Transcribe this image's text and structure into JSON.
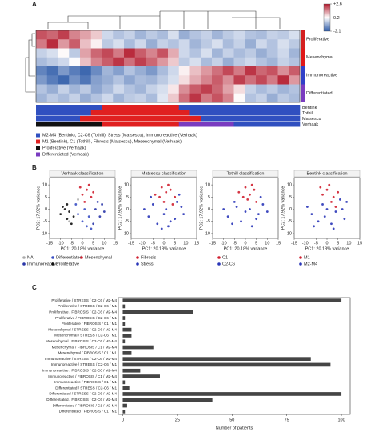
{
  "chart_data": [
    {
      "type": "heatmap",
      "label": "A",
      "zlim": [
        -2.1,
        2.6
      ],
      "zticks": [
        {
          "value": 2.6,
          "label": "+2.6"
        },
        0.2,
        -2.1
      ],
      "colors": [
        "#2c5aa8",
        "#ffffff",
        "#b2182b"
      ],
      "groups": [
        {
          "name": "Proliferative",
          "color": "#d42020",
          "values": [
            [
              2.0,
              1.8,
              2.2,
              1.5,
              1.2,
              0.8,
              -0.3,
              -0.6,
              -0.4,
              -0.8,
              -0.5,
              -0.7,
              -0.2,
              -0.9,
              -0.6,
              -0.4,
              -0.8,
              -0.5,
              -0.3,
              -0.6,
              -0.7,
              -0.4,
              -0.5,
              -0.2
            ],
            [
              1.6,
              2.4,
              1.3,
              1.9,
              0.9,
              0.4,
              -0.5,
              -0.2,
              -0.7,
              -0.3,
              -0.9,
              -0.4,
              -0.6,
              -0.3,
              -0.8,
              -0.5,
              -0.2,
              -0.7,
              -0.4,
              -0.9,
              -0.3,
              -0.6,
              -0.2,
              -0.5
            ]
          ]
        },
        {
          "name": "Mesenchymal",
          "color": "#e01818",
          "values": [
            [
              -0.4,
              -0.2,
              0.3,
              -0.5,
              1.2,
              1.8,
              2.1,
              1.6,
              2.4,
              1.9,
              1.5,
              2.0,
              1.1,
              -0.3,
              -0.6,
              -0.2,
              -0.8,
              -0.4,
              -0.7,
              -0.5,
              -0.9,
              -0.6,
              -0.3,
              -0.8
            ],
            [
              -0.7,
              -0.5,
              -0.3,
              0.2,
              0.9,
              1.5,
              1.9,
              2.3,
              1.7,
              2.2,
              1.8,
              1.3,
              0.8,
              -0.5,
              -0.2,
              -0.7,
              -0.4,
              -0.9,
              -0.5,
              -0.3,
              -0.6,
              -0.8,
              -0.4,
              -0.6
            ]
          ]
        },
        {
          "name": "Immunoreactive",
          "color": "#3040c8",
          "values": [
            [
              -1.5,
              -1.8,
              -1.2,
              -1.6,
              -1.9,
              -1.4,
              -0.8,
              -1.1,
              -0.6,
              -0.9,
              -1.2,
              -0.7,
              -0.3,
              0.4,
              0.9,
              1.3,
              1.7,
              2.1,
              1.6,
              2.3,
              1.8,
              2.0,
              1.4,
              1.9
            ],
            [
              -1.2,
              -1.6,
              -1.9,
              -1.3,
              -1.7,
              -1.1,
              -0.9,
              -0.6,
              -1.0,
              -0.7,
              -0.8,
              -0.5,
              -0.2,
              0.6,
              1.1,
              1.5,
              1.9,
              1.4,
              2.2,
              1.7,
              2.1,
              1.6,
              2.4,
              1.3
            ]
          ]
        },
        {
          "name": "Differentiated",
          "color": "#7a3cc0",
          "values": [
            [
              -0.6,
              -0.9,
              -0.4,
              -0.8,
              -0.5,
              -1.0,
              -0.7,
              -0.3,
              -0.6,
              -0.8,
              -0.4,
              -0.2,
              0.5,
              1.4,
              1.9,
              2.2,
              1.8,
              1.2,
              0.6,
              -0.4,
              -0.7,
              -0.5,
              -0.8,
              -0.6
            ],
            [
              -0.8,
              -0.5,
              -0.7,
              -0.4,
              -0.9,
              -0.6,
              -0.3,
              -0.8,
              -0.5,
              -0.4,
              -0.7,
              -0.1,
              0.8,
              1.7,
              2.3,
              1.6,
              2.0,
              1.5,
              0.3,
              -0.6,
              -0.4,
              -0.9,
              -0.5,
              -0.7
            ]
          ]
        }
      ],
      "tracks": [
        {
          "name": "Bentink",
          "colors": [
            "#3050c0",
            "#3050c0",
            "#3050c0",
            "#3050c0",
            "#3050c0",
            "#3050c0",
            "#e02020",
            "#e02020",
            "#e02020",
            "#e02020",
            "#e02020",
            "#e02020",
            "#e02020",
            "#3050c0",
            "#3050c0",
            "#3050c0",
            "#3050c0",
            "#3050c0",
            "#3050c0",
            "#3050c0",
            "#3050c0",
            "#3050c0",
            "#3050c0",
            "#3050c0"
          ]
        },
        {
          "name": "Tothill",
          "colors": [
            "#3050c0",
            "#3050c0",
            "#3050c0",
            "#3050c0",
            "#3050c0",
            "#e02020",
            "#e02020",
            "#e02020",
            "#e02020",
            "#e02020",
            "#e02020",
            "#e02020",
            "#e02020",
            "#e02020",
            "#3050c0",
            "#3050c0",
            "#3050c0",
            "#3050c0",
            "#3050c0",
            "#3050c0",
            "#3050c0",
            "#3050c0",
            "#3050c0",
            "#3050c0"
          ]
        },
        {
          "name": "Matsescu",
          "colors": [
            "#3050c0",
            "#3050c0",
            "#3050c0",
            "#3050c0",
            "#e02020",
            "#e02020",
            "#e02020",
            "#e02020",
            "#e02020",
            "#e02020",
            "#e02020",
            "#e02020",
            "#e02020",
            "#e02020",
            "#e02020",
            "#3050c0",
            "#3050c0",
            "#3050c0",
            "#3050c0",
            "#3050c0",
            "#3050c0",
            "#3050c0",
            "#3050c0",
            "#3050c0"
          ]
        },
        {
          "name": "Verhaak",
          "colors": [
            "#111111",
            "#111111",
            "#111111",
            "#111111",
            "#111111",
            "#111111",
            "#e02020",
            "#e02020",
            "#e02020",
            "#e02020",
            "#e02020",
            "#e02020",
            "#e02020",
            "#7a3cc0",
            "#7a3cc0",
            "#7a3cc0",
            "#7a3cc0",
            "#7a3cc0",
            "#3050c0",
            "#3050c0",
            "#3050c0",
            "#3050c0",
            "#3050c0",
            "#3050c0"
          ]
        }
      ],
      "legend": [
        {
          "label": "M2-M4 (Bentink), C2-C6 (Tothill), Stress (Matsescu), Immunoreactive (Verhaak)",
          "color": "#3050c0"
        },
        {
          "label": "M1 (Bentink), C1 (Tothill), Fibrosis (Matsescu), Mesenchymal (Verhaak)",
          "color": "#e02020"
        },
        {
          "label": "Proliferative (Verhaak)",
          "color": "#111111"
        },
        {
          "label": "Differentiated (Verhaak)",
          "color": "#7a3cc0"
        }
      ]
    },
    {
      "type": "scatter",
      "label": "B",
      "title": "Verhaak classification",
      "xlabel": "PC1: 20.18% variance",
      "ylabel": "PC2: 17.92% variance",
      "xlim": [
        -15,
        15
      ],
      "xticks": [
        -15,
        -10,
        -5,
        0,
        5,
        10,
        15
      ],
      "ylim": [
        -12,
        13
      ],
      "yticks": [
        -10,
        -5,
        0,
        5,
        10
      ],
      "series": [
        {
          "name": "NA",
          "color": "#aaaaaa",
          "x": [
            -6,
            -2
          ],
          "y": [
            -5,
            4
          ]
        },
        {
          "name": "Differentiated",
          "color": "#3a4fc4",
          "x": [
            -2,
            0,
            2,
            -3,
            1,
            3,
            4
          ],
          "y": [
            -2,
            -5,
            -7,
            2,
            0,
            -3,
            -8
          ]
        },
        {
          "name": "Mesenchymal",
          "color": "#d02030",
          "x": [
            0,
            2,
            4,
            -1,
            3,
            5,
            1
          ],
          "y": [
            6,
            8,
            5,
            9,
            10,
            7,
            3
          ]
        },
        {
          "name": "Immunoreactive",
          "color": "#2a36a8",
          "x": [
            6,
            8,
            9,
            5,
            10,
            7
          ],
          "y": [
            0,
            -3,
            2,
            -6,
            -1,
            3
          ]
        },
        {
          "name": "Proliferative",
          "color": "#111111",
          "x": [
            -10,
            -8,
            -7,
            -6,
            -9,
            -5,
            -4,
            -7
          ],
          "y": [
            -2,
            0,
            -4,
            -1,
            1,
            -6,
            -3,
            2
          ]
        }
      ]
    },
    {
      "type": "scatter",
      "title": "Matsescu classification",
      "xlabel": "PC1: 20.18% variance",
      "ylabel": "PC2: 17.92% variance",
      "xlim": [
        -15,
        15
      ],
      "xticks": [
        -15,
        -10,
        -5,
        0,
        5,
        10,
        15
      ],
      "ylim": [
        -12,
        13
      ],
      "yticks": [
        -10,
        -5,
        0,
        5,
        10
      ],
      "series": [
        {
          "name": "Fibrosis",
          "color": "#d02030",
          "x": [
            -4,
            -1,
            1,
            3,
            5,
            0,
            2,
            -2,
            4
          ],
          "y": [
            6,
            9,
            7,
            8,
            5,
            3,
            10,
            5,
            2
          ]
        },
        {
          "name": "Stress",
          "color": "#2a36b8",
          "x": [
            -9,
            -7,
            -5,
            -3,
            0,
            2,
            5,
            8,
            9,
            -6,
            6,
            1,
            -1,
            3,
            7
          ],
          "y": [
            0,
            -3,
            2,
            -6,
            -2,
            -7,
            -4,
            1,
            -2,
            5,
            3,
            0,
            -8,
            -5,
            6
          ]
        }
      ]
    },
    {
      "type": "scatter",
      "title": "Tothill classification",
      "xlabel": "PC1: 20.18% variance",
      "ylabel": "PC2: 17.92% variance",
      "xlim": [
        -15,
        15
      ],
      "xticks": [
        -15,
        -10,
        -5,
        0,
        5,
        10,
        15
      ],
      "ylim": [
        -12,
        13
      ],
      "yticks": [
        -10,
        -5,
        0,
        5,
        10
      ],
      "series": [
        {
          "name": "C1",
          "color": "#d02030",
          "x": [
            -3,
            0,
            2,
            4,
            1,
            -1,
            3,
            5
          ],
          "y": [
            7,
            9,
            6,
            8,
            4,
            5,
            10,
            3
          ]
        },
        {
          "name": "C2-C6",
          "color": "#2a36b8",
          "x": [
            -10,
            -8,
            -5,
            -2,
            0,
            3,
            6,
            8,
            10,
            -6,
            7,
            2,
            -4,
            5
          ],
          "y": [
            0,
            -3,
            3,
            -5,
            -1,
            -7,
            -2,
            2,
            -1,
            -6,
            5,
            0,
            1,
            -4
          ]
        }
      ]
    },
    {
      "type": "scatter",
      "title": "Bentink classification",
      "xlabel": "PC1: 20.18% variance",
      "ylabel": "PC2: 17.92% variance",
      "xlim": [
        -15,
        15
      ],
      "xticks": [
        -15,
        -10,
        -5,
        0,
        5,
        10,
        15
      ],
      "ylim": [
        -12,
        13
      ],
      "yticks": [
        -10,
        -5,
        0,
        5,
        10
      ],
      "series": [
        {
          "name": "M1",
          "color": "#d02030",
          "x": [
            -2,
            0,
            1,
            3,
            5,
            2,
            -3,
            4
          ],
          "y": [
            6,
            8,
            10,
            5,
            7,
            3,
            9,
            1
          ]
        },
        {
          "name": "M2-M4",
          "color": "#2a36b8",
          "x": [
            -9,
            -7,
            -4,
            -1,
            2,
            4,
            7,
            9,
            -6,
            0,
            6,
            3,
            -2,
            8
          ],
          "y": [
            1,
            -2,
            -5,
            -3,
            -6,
            -1,
            0,
            3,
            -7,
            0,
            4,
            -8,
            2,
            -4
          ]
        }
      ]
    },
    {
      "type": "bar",
      "label": "C",
      "orientation": "horizontal",
      "xlabel": "Number of patients",
      "color": "#454545",
      "xlim": [
        -2,
        104
      ],
      "xticks": [
        0,
        25,
        50,
        75,
        100
      ],
      "categories": [
        "Proliferative / STRESS / C2-C6 / M2-M4",
        "Proliferative / STRESS / C2-C6 / M1",
        "Proliferative / FIBROSIS / C2-C6 / M2-M4",
        "Proliferative / FIBROSIS / C2-C6 / M1",
        "Proliferative / FIBROSIS / C1 / M1",
        "Mesenchymal / STRESS / C2-C6 / M2-M4",
        "Mesenchymal / STRESS / C2-C6 / M1",
        "Mesenchymal / FIBROSIS / C2-C6 / M2-M4",
        "Mesenchymal / FIBROSIS / C1 / M2-M4",
        "Mesenchymal / FIBROSIS / C1 / M1",
        "Immunoreactive / STRESS / C2-C6 / M2-M4",
        "Immunoreactive / STRESS / C2-C6 / M1",
        "Immunoreactive / FIBROSIS / C2-C6 / M2-M4",
        "Immunoreactive / FIBROSIS / C1 / M2-M4",
        "Immunoreactive / FIBROSIS / C1 / M1",
        "Differentiated / STRESS / C2-C6 / M1",
        "Differentiated / STRESS / C2-C6 / M2-M4",
        "Differentiated / FIBROSIS / C2-C6 / M2-M4",
        "Differentiated / FIBROSIS / C1 / M2-M4",
        "Differentiated / FIBROSIS / C1 / M1"
      ],
      "values": [
        100,
        1,
        32,
        1,
        1,
        4,
        4,
        1,
        14,
        4,
        86,
        95,
        8,
        17,
        1,
        3,
        100,
        41,
        2,
        1
      ]
    }
  ]
}
